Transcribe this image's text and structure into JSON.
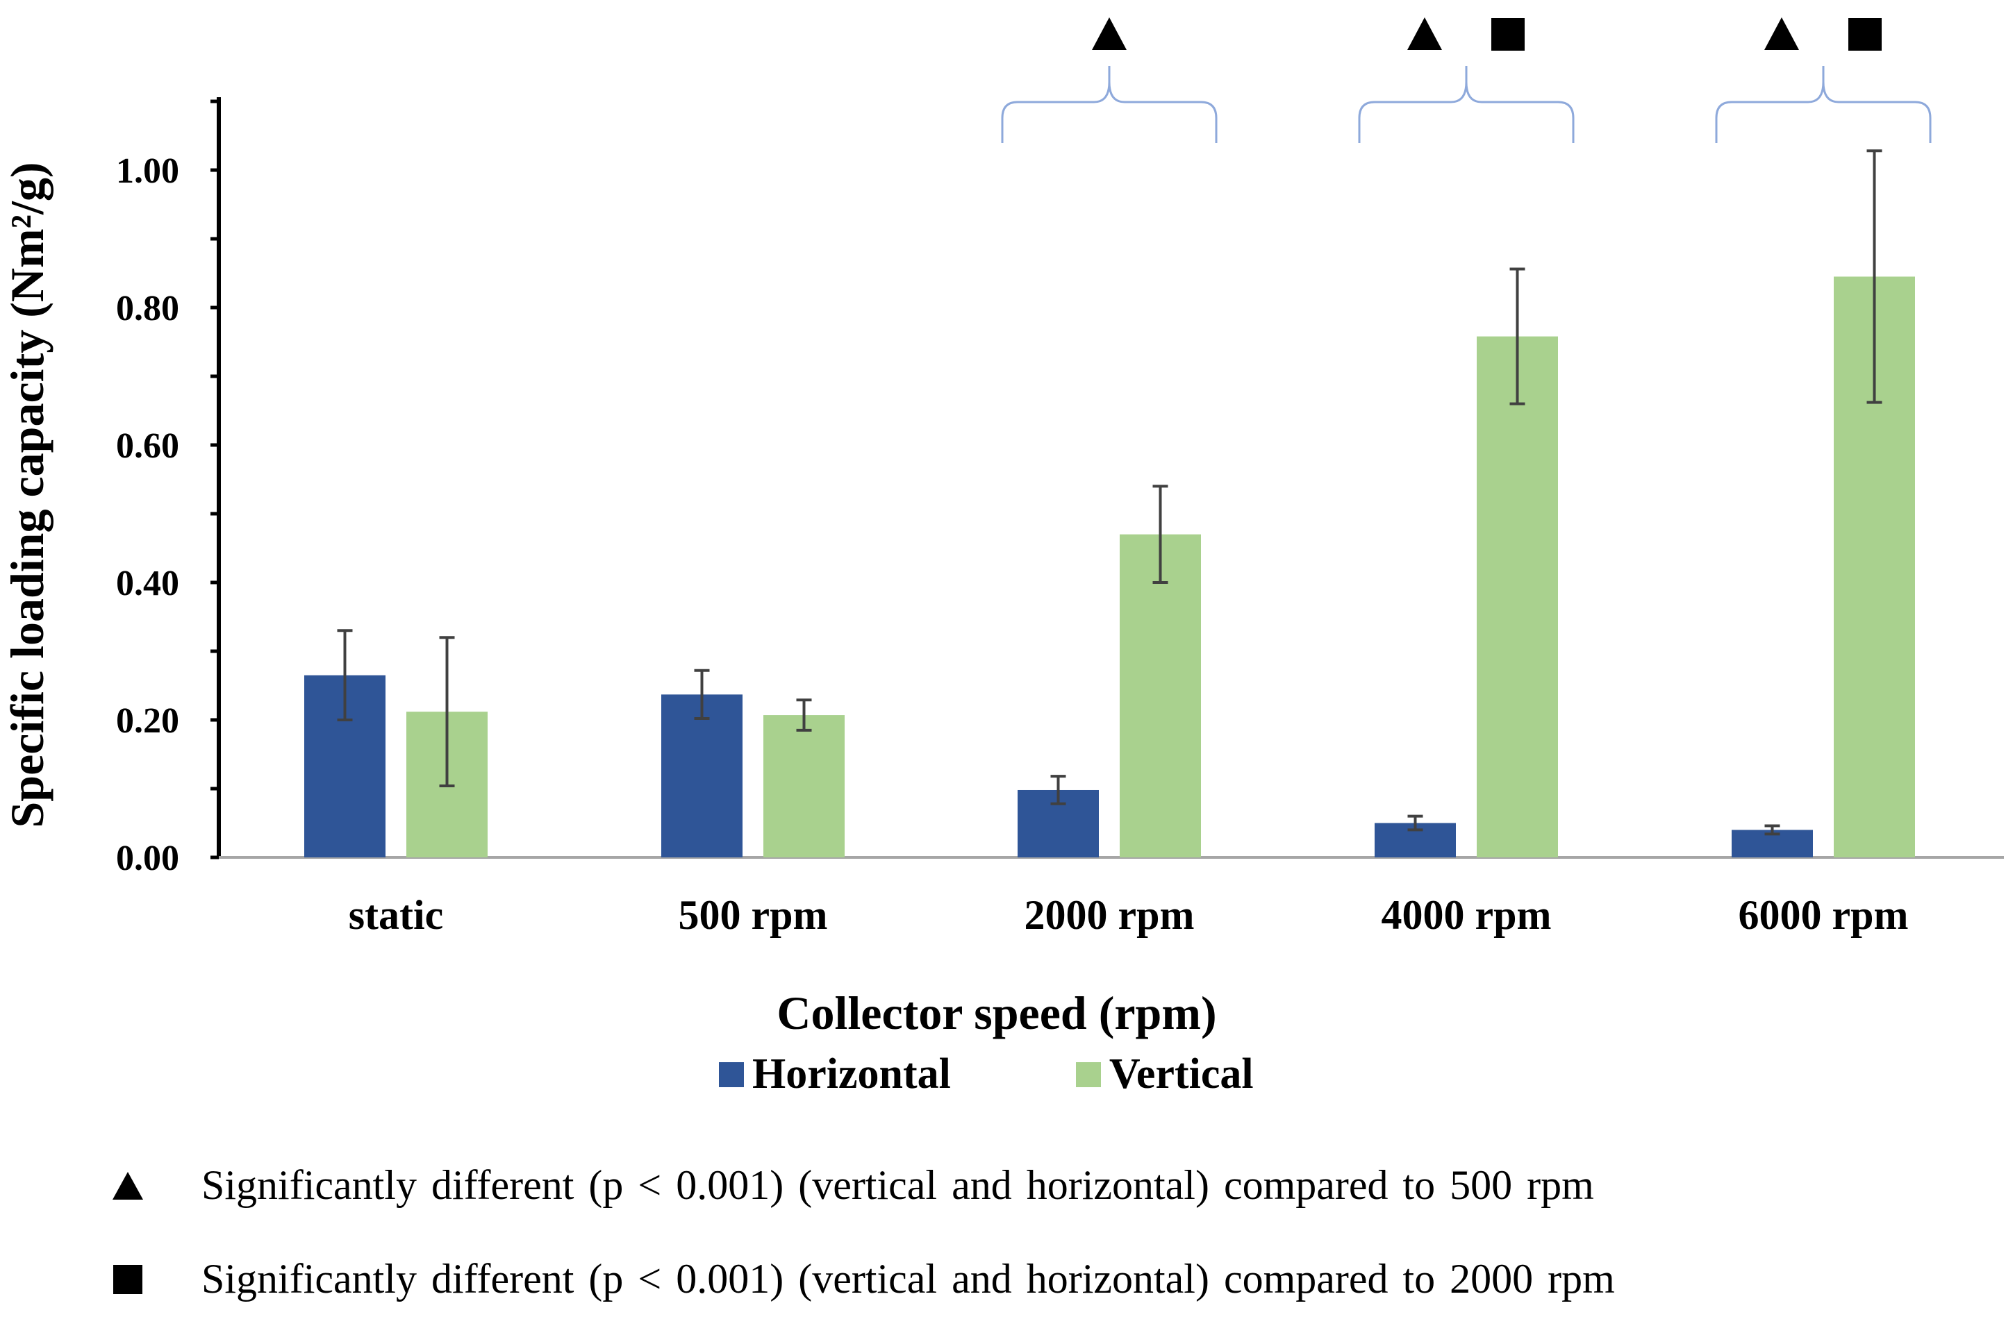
{
  "chart_data": {
    "type": "bar",
    "categories": [
      "static",
      "500 rpm",
      "2000 rpm",
      "4000 rpm",
      "6000 rpm"
    ],
    "series": [
      {
        "name": "Horizontal",
        "color": "#2F5597",
        "values": [
          0.265,
          0.237,
          0.098,
          0.05,
          0.04
        ],
        "error": [
          0.065,
          0.035,
          0.02,
          0.01,
          0.006
        ]
      },
      {
        "name": "Vertical",
        "color": "#A9D18E",
        "values": [
          0.212,
          0.207,
          0.47,
          0.758,
          0.845
        ],
        "error": [
          0.108,
          0.022,
          0.07,
          0.098,
          0.183
        ]
      }
    ],
    "xlabel": "Collector speed (rpm)",
    "ylabel": "Specific loading capacity (Nm²/g)",
    "ylim": [
      0,
      1.1
    ],
    "yticks": [
      "0.00",
      "0.20",
      "0.40",
      "0.60",
      "0.80",
      "1.00"
    ],
    "legend_position": "bottom",
    "grid": false,
    "significance": [
      {
        "category": "2000 rpm",
        "markers": [
          "triangle"
        ]
      },
      {
        "category": "4000 rpm",
        "markers": [
          "triangle",
          "square"
        ]
      },
      {
        "category": "6000 rpm",
        "markers": [
          "triangle",
          "square"
        ]
      }
    ],
    "bracket_color": "#8EA9DB",
    "error_bar_color": "#404040"
  },
  "notes": [
    {
      "icon": "triangle-icon",
      "text": "Significantly different (p < 0.001) (vertical and horizontal) compared to 500 rpm"
    },
    {
      "icon": "square-icon",
      "text": "Significantly different (p < 0.001) (vertical and horizontal) compared to 2000 rpm"
    }
  ]
}
